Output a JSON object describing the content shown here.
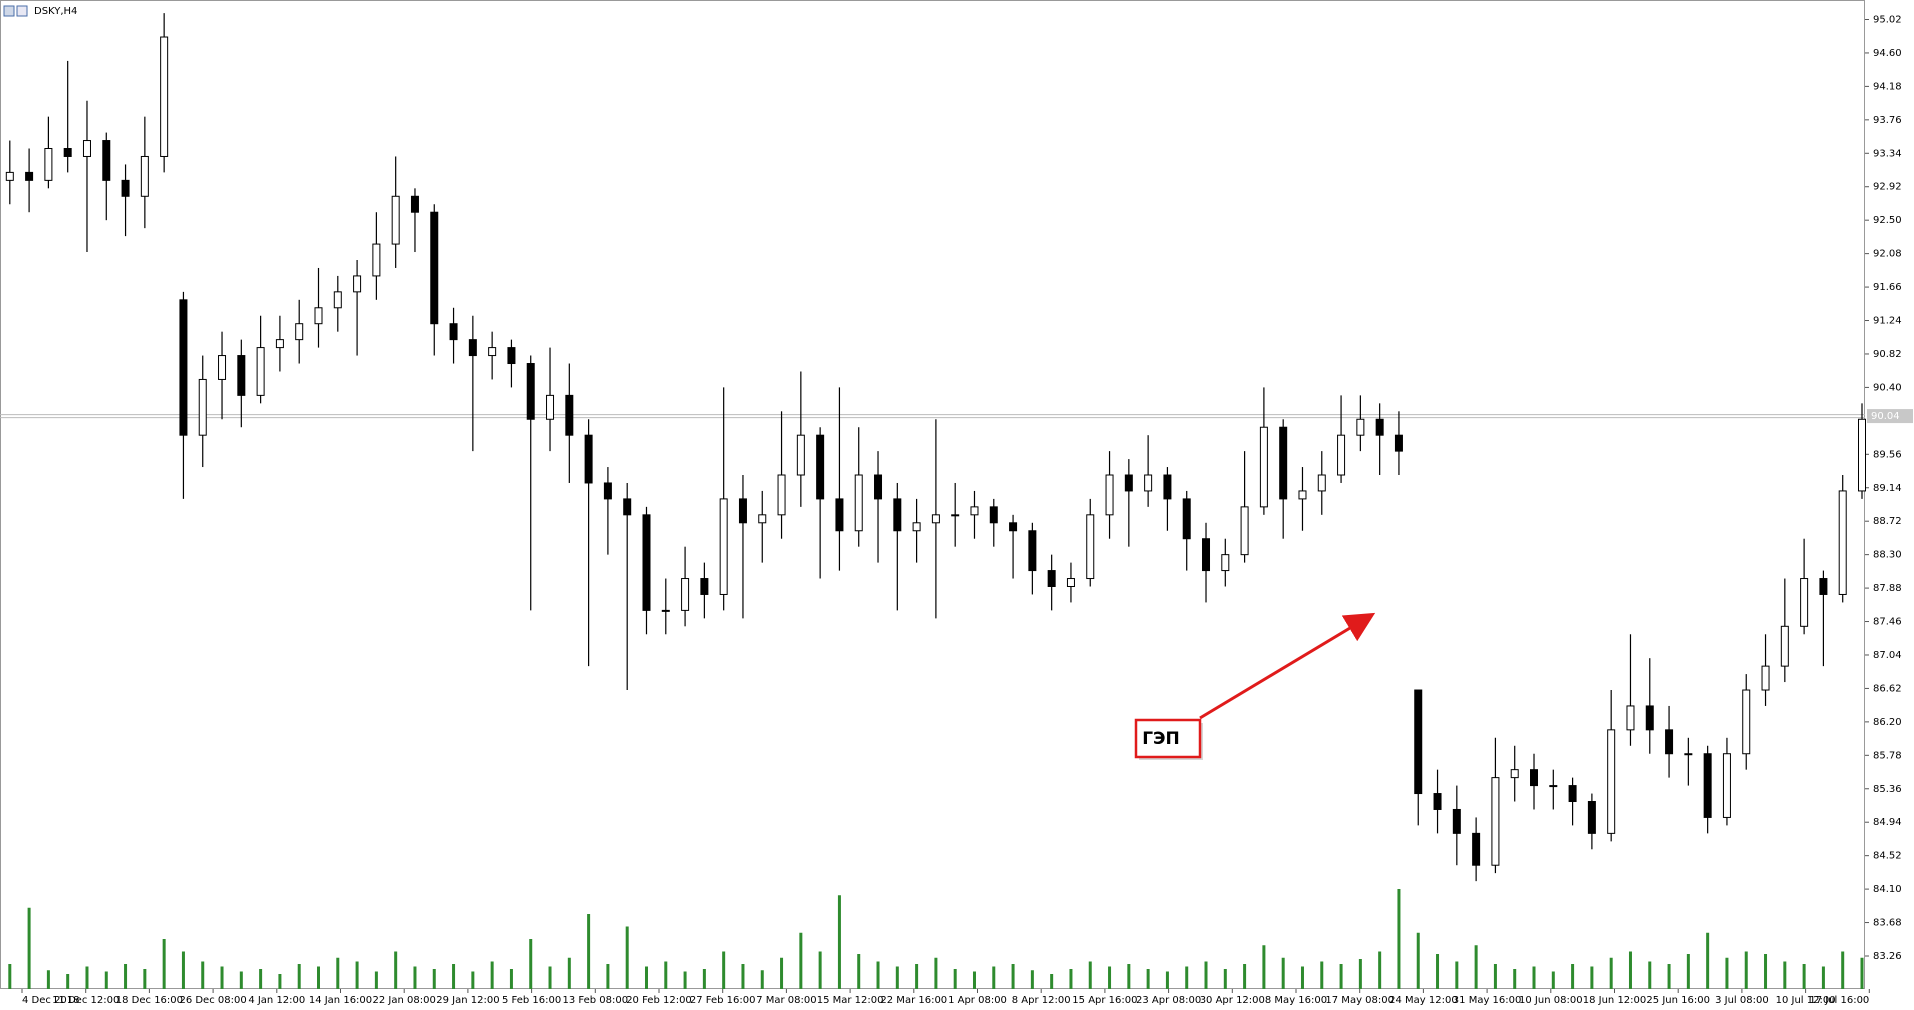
{
  "chart_data": {
    "type": "candlestick",
    "title": "DSKY,H4",
    "annotation": "ГЭП",
    "current_price": 90.04,
    "ylim": [
      83.26,
      95.02
    ],
    "yticks": [
      95.02,
      {
        "value": 94.6,
        "label": "94.60"
      },
      94.18,
      93.76,
      93.34,
      92.92,
      {
        "value": 92.5,
        "label": "92.50"
      },
      92.08,
      91.66,
      91.24,
      90.82,
      {
        "value": 90.4,
        "label": "90.40"
      },
      89.56,
      89.14,
      88.72,
      {
        "value": 88.3,
        "label": "88.30"
      },
      87.88,
      87.46,
      87.04,
      86.62,
      {
        "value": 86.2,
        "label": "86.20"
      },
      85.78,
      85.36,
      84.94,
      84.52,
      {
        "value": 84.1,
        "label": "84.10"
      },
      83.68,
      83.26
    ],
    "x_labels": [
      "4 Dec 2018",
      "11 Dec 12:00",
      "18 Dec 16:00",
      "26 Dec 08:00",
      "4 Jan 12:00",
      "14 Jan 16:00",
      "22 Jan 08:00",
      "29 Jan 12:00",
      "5 Feb 16:00",
      "13 Feb 08:00",
      "20 Feb 12:00",
      "27 Feb 16:00",
      "7 Mar 08:00",
      "15 Mar 12:00",
      "22 Mar 16:00",
      "1 Apr 08:00",
      "8 Apr 12:00",
      "15 Apr 16:00",
      "23 Apr 08:00",
      "30 Apr 12:00",
      "8 May 16:00",
      "17 May 08:00",
      "24 May 12:00",
      "31 May 16:00",
      "10 Jun 08:00",
      "18 Jun 12:00",
      "25 Jun 16:00",
      "3 Jul 08:00",
      "10 Jul 12:00",
      "17 Jul 16:00"
    ],
    "ohlc": [
      [
        93.0,
        93.5,
        92.7,
        93.1
      ],
      [
        93.1,
        93.4,
        92.6,
        93.0
      ],
      [
        93.0,
        93.8,
        92.9,
        93.4
      ],
      [
        93.4,
        94.5,
        93.1,
        93.3
      ],
      [
        93.3,
        94.0,
        92.1,
        93.5
      ],
      [
        93.5,
        93.6,
        92.5,
        93.0
      ],
      [
        93.0,
        93.2,
        92.3,
        92.8
      ],
      [
        92.8,
        93.8,
        92.4,
        93.3
      ],
      [
        93.3,
        95.1,
        93.1,
        94.8
      ],
      [
        91.5,
        91.6,
        89.0,
        89.8
      ],
      [
        89.8,
        90.8,
        89.4,
        90.5
      ],
      [
        90.5,
        91.1,
        90.0,
        90.8
      ],
      [
        90.8,
        91.0,
        89.9,
        90.3
      ],
      [
        90.3,
        91.3,
        90.2,
        90.9
      ],
      [
        90.9,
        91.3,
        90.6,
        91.0
      ],
      [
        91.0,
        91.5,
        90.7,
        91.2
      ],
      [
        91.2,
        91.9,
        90.9,
        91.4
      ],
      [
        91.4,
        91.8,
        91.1,
        91.6
      ],
      [
        91.6,
        92.0,
        90.8,
        91.8
      ],
      [
        91.8,
        92.6,
        91.5,
        92.2
      ],
      [
        92.2,
        93.3,
        91.9,
        92.8
      ],
      [
        92.8,
        92.9,
        92.1,
        92.6
      ],
      [
        92.6,
        92.7,
        90.8,
        91.2
      ],
      [
        91.2,
        91.4,
        90.7,
        91.0
      ],
      [
        91.0,
        91.3,
        89.6,
        90.8
      ],
      [
        90.8,
        91.1,
        90.5,
        90.9
      ],
      [
        90.9,
        91.0,
        90.4,
        90.7
      ],
      [
        90.7,
        90.8,
        87.6,
        90.0
      ],
      [
        90.0,
        90.9,
        89.6,
        90.3
      ],
      [
        90.3,
        90.7,
        89.2,
        89.8
      ],
      [
        89.8,
        90.0,
        86.9,
        89.2
      ],
      [
        89.2,
        89.4,
        88.3,
        89.0
      ],
      [
        89.0,
        89.2,
        86.6,
        88.8
      ],
      [
        88.8,
        88.9,
        87.3,
        87.6
      ],
      [
        87.6,
        88.0,
        87.3,
        87.6
      ],
      [
        87.6,
        88.4,
        87.4,
        88.0
      ],
      [
        88.0,
        88.2,
        87.5,
        87.8
      ],
      [
        87.8,
        90.4,
        87.6,
        89.0
      ],
      [
        89.0,
        89.3,
        87.5,
        88.7
      ],
      [
        88.7,
        89.1,
        88.2,
        88.8
      ],
      [
        88.8,
        90.1,
        88.5,
        89.3
      ],
      [
        89.3,
        90.6,
        88.9,
        89.8
      ],
      [
        89.8,
        89.9,
        88.0,
        89.0
      ],
      [
        89.0,
        90.4,
        88.1,
        88.6
      ],
      [
        88.6,
        89.9,
        88.4,
        89.3
      ],
      [
        89.3,
        89.6,
        88.2,
        89.0
      ],
      [
        89.0,
        89.2,
        87.6,
        88.6
      ],
      [
        88.6,
        89.0,
        88.2,
        88.7
      ],
      [
        88.7,
        90.0,
        87.5,
        88.8
      ],
      [
        88.8,
        89.2,
        88.4,
        88.8
      ],
      [
        88.8,
        89.1,
        88.5,
        88.9
      ],
      [
        88.9,
        89.0,
        88.4,
        88.7
      ],
      [
        88.7,
        88.8,
        88.0,
        88.6
      ],
      [
        88.6,
        88.7,
        87.8,
        88.1
      ],
      [
        88.1,
        88.3,
        87.6,
        87.9
      ],
      [
        87.9,
        88.2,
        87.7,
        88.0
      ],
      [
        88.0,
        89.0,
        87.9,
        88.8
      ],
      [
        88.8,
        89.6,
        88.5,
        89.3
      ],
      [
        89.3,
        89.5,
        88.4,
        89.1
      ],
      [
        89.1,
        89.8,
        88.9,
        89.3
      ],
      [
        89.3,
        89.4,
        88.6,
        89.0
      ],
      [
        89.0,
        89.1,
        88.1,
        88.5
      ],
      [
        88.5,
        88.7,
        87.7,
        88.1
      ],
      [
        88.1,
        88.5,
        87.9,
        88.3
      ],
      [
        88.3,
        89.6,
        88.2,
        88.9
      ],
      [
        88.9,
        90.4,
        88.8,
        89.9
      ],
      [
        89.9,
        90.0,
        88.5,
        89.0
      ],
      [
        89.0,
        89.4,
        88.6,
        89.1
      ],
      [
        89.1,
        89.6,
        88.8,
        89.3
      ],
      [
        89.3,
        90.3,
        89.2,
        89.8
      ],
      [
        89.8,
        90.3,
        89.6,
        90.0
      ],
      [
        90.0,
        90.2,
        89.3,
        89.8
      ],
      [
        89.8,
        90.1,
        89.3,
        89.6
      ],
      [
        86.6,
        86.6,
        84.9,
        85.3
      ],
      [
        85.3,
        85.6,
        84.8,
        85.1
      ],
      [
        85.1,
        85.4,
        84.4,
        84.8
      ],
      [
        84.8,
        85.0,
        84.2,
        84.4
      ],
      [
        84.4,
        86.0,
        84.3,
        85.5
      ],
      [
        85.5,
        85.9,
        85.2,
        85.6
      ],
      [
        85.6,
        85.8,
        85.1,
        85.4
      ],
      [
        85.4,
        85.6,
        85.1,
        85.4
      ],
      [
        85.4,
        85.5,
        84.9,
        85.2
      ],
      [
        85.2,
        85.3,
        84.6,
        84.8
      ],
      [
        84.8,
        86.6,
        84.7,
        86.1
      ],
      [
        86.1,
        87.3,
        85.9,
        86.4
      ],
      [
        86.4,
        87.0,
        85.8,
        86.1
      ],
      [
        86.1,
        86.4,
        85.5,
        85.8
      ],
      [
        85.8,
        86.0,
        85.4,
        85.8
      ],
      [
        85.8,
        85.9,
        84.8,
        85.0
      ],
      [
        85.0,
        86.0,
        84.9,
        85.8
      ],
      [
        85.8,
        86.8,
        85.6,
        86.6
      ],
      [
        86.6,
        87.3,
        86.4,
        86.9
      ],
      [
        86.9,
        88.0,
        86.7,
        87.4
      ],
      [
        87.4,
        88.5,
        87.3,
        88.0
      ],
      [
        88.0,
        88.1,
        86.9,
        87.8
      ],
      [
        87.8,
        89.3,
        87.7,
        89.1
      ],
      [
        89.1,
        90.2,
        89.0,
        90.0
      ]
    ],
    "volume": [
      20,
      65,
      15,
      12,
      18,
      14,
      20,
      16,
      40,
      30,
      22,
      18,
      14,
      16,
      12,
      20,
      18,
      25,
      22,
      14,
      30,
      18,
      16,
      20,
      14,
      22,
      16,
      40,
      18,
      25,
      60,
      20,
      50,
      18,
      22,
      14,
      16,
      30,
      20,
      15,
      25,
      45,
      30,
      75,
      28,
      22,
      18,
      20,
      25,
      16,
      14,
      18,
      20,
      15,
      12,
      16,
      22,
      18,
      20,
      16,
      14,
      18,
      22,
      16,
      20,
      35,
      25,
      18,
      22,
      20,
      24,
      30,
      80,
      45,
      28,
      22,
      35,
      20,
      16,
      18,
      14,
      20,
      18,
      25,
      30,
      22,
      20,
      28,
      45,
      25,
      30,
      28,
      22,
      20,
      18,
      30,
      25
    ],
    "up_color": "#ffffff",
    "down_color": "#000000",
    "volume_color": "#2e8b2e"
  }
}
